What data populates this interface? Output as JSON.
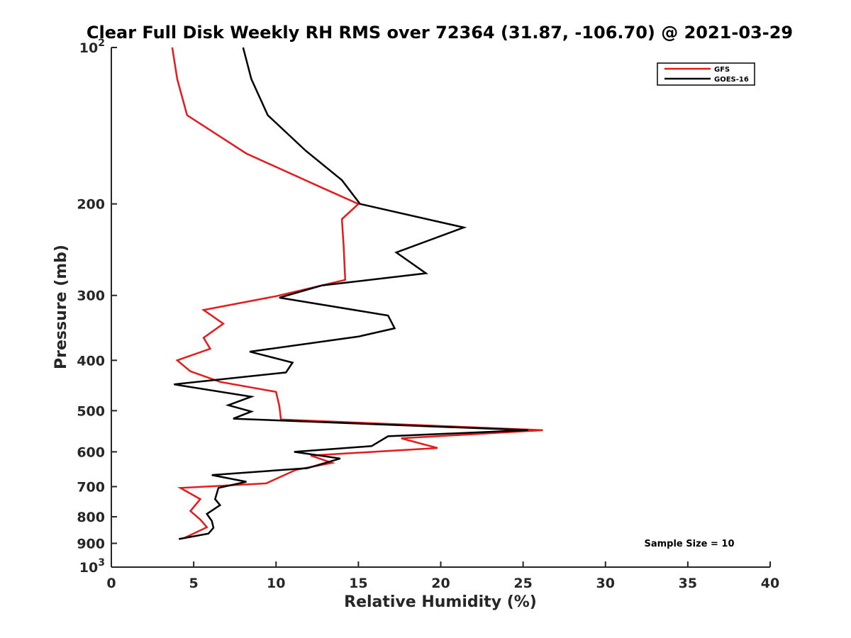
{
  "chart_data": {
    "type": "line",
    "title": "Clear Full Disk Weekly RH RMS over 72364 (31.87, -106.70) @ 2021-03-29",
    "xlabel": "Relative Humidity (%)",
    "ylabel": "Pressure (mb)",
    "xlim": [
      0,
      40
    ],
    "ylim": [
      100,
      1000
    ],
    "yscale": "log",
    "y_reversed": true,
    "x_ticks": [
      "0",
      "5",
      "10",
      "15",
      "20",
      "25",
      "30",
      "35",
      "40"
    ],
    "x_tick_values": [
      0,
      5,
      10,
      15,
      20,
      25,
      30,
      35,
      40
    ],
    "y_ticks": [
      {
        "value": 100,
        "base": "10",
        "exp": "2"
      },
      {
        "value": 200,
        "base": "200",
        "exp": ""
      },
      {
        "value": 300,
        "base": "300",
        "exp": ""
      },
      {
        "value": 400,
        "base": "400",
        "exp": ""
      },
      {
        "value": 500,
        "base": "500",
        "exp": ""
      },
      {
        "value": 600,
        "base": "600",
        "exp": ""
      },
      {
        "value": 700,
        "base": "700",
        "exp": ""
      },
      {
        "value": 800,
        "base": "800",
        "exp": ""
      },
      {
        "value": 900,
        "base": "900",
        "exp": ""
      },
      {
        "value": 1000,
        "base": "10",
        "exp": "3"
      }
    ],
    "grid": false,
    "legend_position": "top-right",
    "series": [
      {
        "name": "GFS",
        "color": "#e41a1c",
        "points": [
          [
            3.7,
            100
          ],
          [
            4.0,
            115
          ],
          [
            4.6,
            135
          ],
          [
            8.2,
            160
          ],
          [
            12.6,
            185
          ],
          [
            15.0,
            200
          ],
          [
            14.0,
            214
          ],
          [
            14.1,
            240
          ],
          [
            14.2,
            280
          ],
          [
            10.0,
            301
          ],
          [
            5.6,
            320
          ],
          [
            6.8,
            340
          ],
          [
            5.6,
            362
          ],
          [
            6.0,
            380
          ],
          [
            4.0,
            400
          ],
          [
            4.8,
            420
          ],
          [
            6.6,
            440
          ],
          [
            10.0,
            460
          ],
          [
            10.2,
            490
          ],
          [
            10.3,
            520
          ],
          [
            26.2,
            545
          ],
          [
            17.6,
            565
          ],
          [
            19.8,
            590
          ],
          [
            12.1,
            610
          ],
          [
            13.4,
            630
          ],
          [
            11.2,
            650
          ],
          [
            9.4,
            690
          ],
          [
            4.2,
            704
          ],
          [
            5.4,
            740
          ],
          [
            4.8,
            780
          ],
          [
            5.4,
            810
          ],
          [
            5.8,
            838
          ],
          [
            4.4,
            880
          ]
        ]
      },
      {
        "name": "GOES-16",
        "color": "#000000",
        "points": [
          [
            8.0,
            100
          ],
          [
            8.5,
            115
          ],
          [
            9.5,
            135
          ],
          [
            11.8,
            158
          ],
          [
            14.0,
            180
          ],
          [
            15.1,
            200
          ],
          [
            21.4,
            222
          ],
          [
            17.3,
            248
          ],
          [
            19.1,
            272
          ],
          [
            12.8,
            287
          ],
          [
            10.2,
            303
          ],
          [
            16.8,
            328
          ],
          [
            17.2,
            347
          ],
          [
            15.0,
            360
          ],
          [
            8.4,
            385
          ],
          [
            11.0,
            404
          ],
          [
            10.6,
            422
          ],
          [
            3.8,
            445
          ],
          [
            8.5,
            470
          ],
          [
            7.1,
            488
          ],
          [
            8.5,
            502
          ],
          [
            7.4,
            518
          ],
          [
            25.3,
            545
          ],
          [
            16.8,
            560
          ],
          [
            15.8,
            585
          ],
          [
            11.1,
            600
          ],
          [
            13.9,
            618
          ],
          [
            11.9,
            645
          ],
          [
            6.1,
            665
          ],
          [
            8.2,
            685
          ],
          [
            6.5,
            704
          ],
          [
            6.3,
            740
          ],
          [
            6.6,
            760
          ],
          [
            5.8,
            790
          ],
          [
            6.1,
            815
          ],
          [
            6.2,
            840
          ],
          [
            5.9,
            862
          ],
          [
            4.1,
            883
          ]
        ]
      }
    ],
    "annotation": "Sample Size = 10"
  }
}
